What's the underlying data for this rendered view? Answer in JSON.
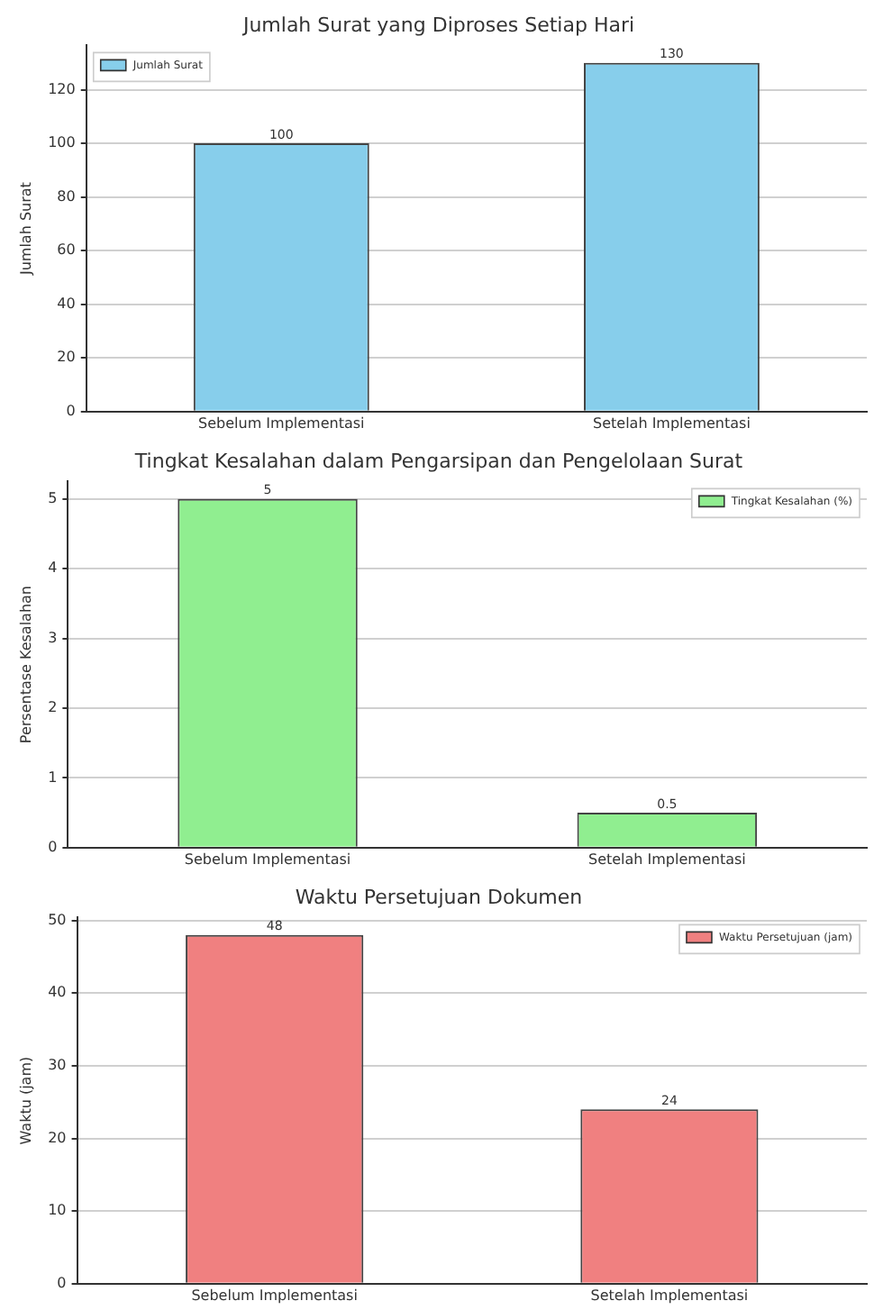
{
  "chart_data": [
    {
      "type": "bar",
      "title": "Jumlah Surat yang Diproses Setiap Hari",
      "ylabel": "Jumlah Surat",
      "categories": [
        "Sebelum Implementasi",
        "Setelah Implementasi"
      ],
      "series": [
        {
          "name": "Jumlah Surat",
          "color": "#87ceeb",
          "values": [
            100,
            130
          ]
        }
      ],
      "ylim": [
        0,
        136.5
      ],
      "yticks": [
        0,
        20,
        40,
        60,
        80,
        100,
        120
      ],
      "grid": "y",
      "legend": "top left",
      "data_labels": true
    },
    {
      "type": "bar",
      "title": "Tingkat Kesalahan dalam Pengarsipan dan Pengelolaan Surat",
      "ylabel": "Persentase Kesalahan",
      "categories": [
        "Sebelum Implementasi",
        "Setelah Implementasi"
      ],
      "series": [
        {
          "name": "Tingkat Kesalahan (%)",
          "color": "#90ee90",
          "values": [
            5,
            0.5
          ]
        }
      ],
      "ylim": [
        0,
        5.25
      ],
      "yticks": [
        0,
        1,
        2,
        3,
        4,
        5
      ],
      "grid": "y",
      "legend": "top right",
      "data_labels": true
    },
    {
      "type": "bar",
      "title": "Waktu Persetujuan Dokumen",
      "ylabel": "Waktu (jam)",
      "categories": [
        "Sebelum Implementasi",
        "Setelah Implementasi"
      ],
      "series": [
        {
          "name": "Waktu Persetujuan (jam)",
          "color": "#f08080",
          "values": [
            48,
            24
          ]
        }
      ],
      "ylim": [
        0,
        50.4
      ],
      "yticks": [
        0,
        10,
        20,
        30,
        40,
        50
      ],
      "grid": "y",
      "legend": "top right",
      "data_labels": true
    }
  ]
}
